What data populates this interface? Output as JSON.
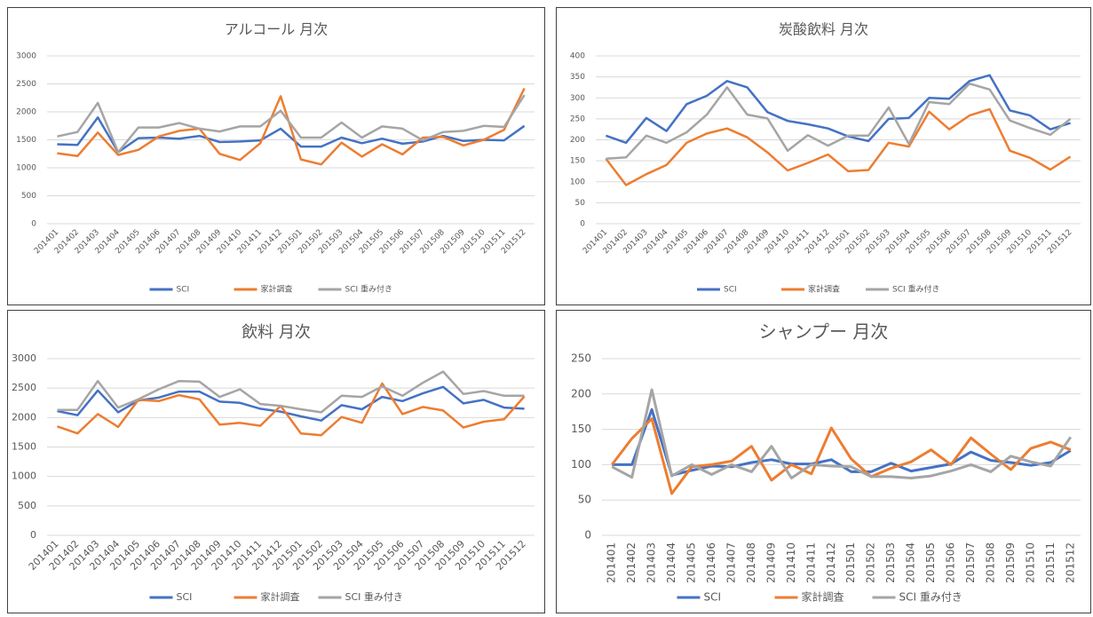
{
  "chart_data": [
    {
      "type": "line",
      "title": "アルコール 月次",
      "categories": [
        "201401",
        "201402",
        "201403",
        "201404",
        "201405",
        "201406",
        "201407",
        "201408",
        "201409",
        "201410",
        "201411",
        "201412",
        "201501",
        "201502",
        "201503",
        "201504",
        "201505",
        "201506",
        "201507",
        "201508",
        "201509",
        "201510",
        "201511",
        "201512"
      ],
      "series": [
        {
          "name": "SCI",
          "color": "#4472c4",
          "values": [
            1420,
            1410,
            1900,
            1280,
            1530,
            1540,
            1520,
            1570,
            1460,
            1470,
            1490,
            1700,
            1380,
            1380,
            1540,
            1440,
            1520,
            1430,
            1470,
            1570,
            1480,
            1500,
            1490,
            1750
          ]
        },
        {
          "name": "家計調査",
          "color": "#ed7d31",
          "values": [
            1260,
            1210,
            1630,
            1230,
            1320,
            1560,
            1660,
            1700,
            1250,
            1140,
            1440,
            2280,
            1150,
            1060,
            1450,
            1200,
            1420,
            1240,
            1540,
            1550,
            1400,
            1500,
            1680,
            2420
          ]
        },
        {
          "name": "SCI 重み付き",
          "color": "#a5a5a5",
          "values": [
            1560,
            1640,
            2160,
            1280,
            1720,
            1720,
            1800,
            1700,
            1650,
            1740,
            1740,
            2020,
            1540,
            1540,
            1810,
            1540,
            1740,
            1700,
            1490,
            1640,
            1660,
            1750,
            1730,
            2300
          ]
        }
      ],
      "ylim": [
        0,
        3000
      ],
      "yticks": [
        0,
        500,
        1000,
        1500,
        2000,
        2500,
        3000
      ],
      "grid": true,
      "legend": "bottom"
    },
    {
      "type": "line",
      "title": "炭酸飲料 月次",
      "categories": [
        "201401",
        "201402",
        "201403",
        "201404",
        "201405",
        "201406",
        "201407",
        "201408",
        "201409",
        "201410",
        "201411",
        "201412",
        "201501",
        "201502",
        "201503",
        "201504",
        "201505",
        "201506",
        "201507",
        "201508",
        "201509",
        "201510",
        "201511",
        "201512"
      ],
      "series": [
        {
          "name": "SCI",
          "color": "#4472c4",
          "values": [
            210,
            193,
            252,
            221,
            285,
            305,
            340,
            325,
            266,
            245,
            237,
            227,
            208,
            197,
            250,
            252,
            300,
            298,
            340,
            354,
            270,
            258,
            225,
            240
          ]
        },
        {
          "name": "家計調査",
          "color": "#ed7d31",
          "values": [
            155,
            92,
            118,
            140,
            193,
            215,
            227,
            206,
            170,
            127,
            145,
            165,
            125,
            128,
            193,
            184,
            267,
            225,
            258,
            273,
            174,
            157,
            129,
            160
          ]
        },
        {
          "name": "SCI 重み付き",
          "color": "#a5a5a5",
          "values": [
            155,
            158,
            210,
            193,
            218,
            260,
            325,
            260,
            251,
            174,
            211,
            186,
            210,
            210,
            277,
            190,
            290,
            285,
            334,
            320,
            246,
            228,
            212,
            250
          ]
        }
      ],
      "ylim": [
        0,
        400
      ],
      "yticks": [
        0,
        50,
        100,
        150,
        200,
        250,
        300,
        350,
        400
      ],
      "grid": true,
      "legend": "bottom"
    },
    {
      "type": "line",
      "title": "飲料 月次",
      "categories": [
        "201401",
        "201402",
        "201403",
        "201404",
        "201405",
        "201406",
        "201407",
        "201408",
        "201409",
        "201410",
        "201411",
        "201412",
        "201501",
        "201502",
        "201503",
        "201504",
        "201505",
        "201506",
        "201507",
        "201508",
        "201509",
        "201510",
        "201511",
        "201512"
      ],
      "series": [
        {
          "name": "SCI",
          "color": "#4472c4",
          "values": [
            2110,
            2040,
            2460,
            2090,
            2290,
            2340,
            2440,
            2440,
            2270,
            2250,
            2150,
            2100,
            2020,
            1950,
            2210,
            2140,
            2350,
            2280,
            2410,
            2520,
            2240,
            2300,
            2170,
            2150
          ]
        },
        {
          "name": "家計調査",
          "color": "#ed7d31",
          "values": [
            1850,
            1730,
            2060,
            1840,
            2300,
            2280,
            2380,
            2310,
            1880,
            1910,
            1860,
            2200,
            1730,
            1700,
            2010,
            1910,
            2580,
            2060,
            2180,
            2120,
            1830,
            1930,
            1970,
            2360
          ]
        },
        {
          "name": "SCI 重み付き",
          "color": "#a5a5a5",
          "values": [
            2130,
            2130,
            2620,
            2170,
            2310,
            2480,
            2620,
            2610,
            2350,
            2480,
            2230,
            2200,
            2140,
            2090,
            2370,
            2350,
            2530,
            2370,
            2590,
            2780,
            2400,
            2450,
            2370,
            2370
          ]
        }
      ],
      "ylim": [
        0,
        3000
      ],
      "yticks": [
        0,
        500,
        1000,
        1500,
        2000,
        2500,
        3000
      ],
      "grid": true,
      "legend": "bottom"
    },
    {
      "type": "line",
      "title": "シャンプー 月次",
      "categories": [
        "201401",
        "201402",
        "201403",
        "201404",
        "201405",
        "201406",
        "201407",
        "201408",
        "201409",
        "201410",
        "201411",
        "201412",
        "201501",
        "201502",
        "201503",
        "201504",
        "201505",
        "201506",
        "201507",
        "201508",
        "201509",
        "201510",
        "201511",
        "201512"
      ],
      "series": [
        {
          "name": "SCI",
          "color": "#4472c4",
          "values": [
            100,
            100,
            178,
            85,
            92,
            98,
            97,
            103,
            107,
            101,
            101,
            107,
            90,
            90,
            102,
            91,
            96,
            101,
            118,
            106,
            103,
            99,
            103,
            120
          ]
        },
        {
          "name": "家計調査",
          "color": "#ed7d31",
          "values": [
            100,
            137,
            165,
            59,
            97,
            100,
            105,
            126,
            78,
            100,
            87,
            152,
            108,
            83,
            95,
            104,
            121,
            100,
            138,
            115,
            93,
            123,
            132,
            121
          ]
        },
        {
          "name": "SCI 重み付き",
          "color": "#a5a5a5",
          "values": [
            97,
            82,
            206,
            84,
            100,
            86,
            100,
            90,
            126,
            81,
            100,
            98,
            97,
            83,
            83,
            81,
            84,
            91,
            100,
            90,
            112,
            104,
            98,
            139
          ]
        }
      ],
      "ylim": [
        0,
        250
      ],
      "yticks": [
        0,
        50,
        100,
        150,
        200,
        250
      ],
      "grid": true,
      "legend": "bottom"
    }
  ]
}
